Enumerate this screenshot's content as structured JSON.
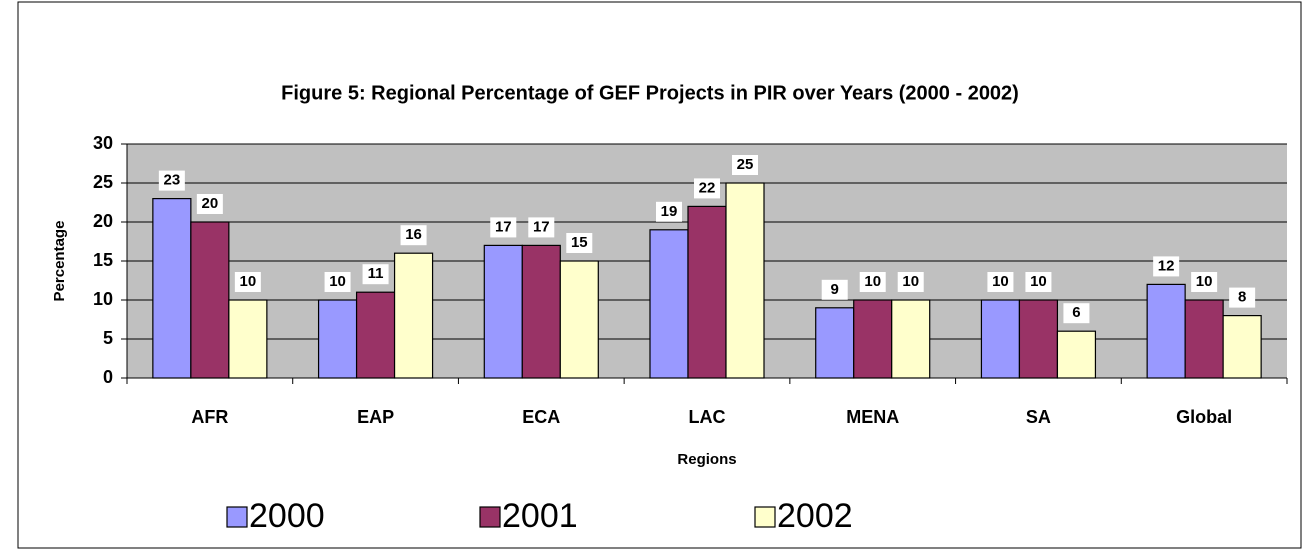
{
  "chart_data": {
    "type": "bar",
    "title": "Figure 5: Regional Percentage of GEF Projects in PIR over Years (2000 - 2002)",
    "x_label": "Regions",
    "y_label": "Percentage",
    "categories": [
      "AFR",
      "EAP",
      "ECA",
      "LAC",
      "MENA",
      "SA",
      "Global"
    ],
    "series": [
      {
        "name": "2000",
        "color": "#9999ff",
        "values": [
          23,
          10,
          17,
          19,
          9,
          10,
          12
        ]
      },
      {
        "name": "2001",
        "color": "#993366",
        "values": [
          20,
          11,
          17,
          22,
          10,
          10,
          10
        ]
      },
      {
        "name": "2002",
        "color": "#ffffcc",
        "values": [
          10,
          16,
          15,
          25,
          10,
          6,
          8
        ]
      }
    ],
    "ylim": [
      0,
      30
    ],
    "yticks": [
      0,
      5,
      10,
      15,
      20,
      25,
      30
    ],
    "grid": true,
    "legend": "bottom"
  }
}
